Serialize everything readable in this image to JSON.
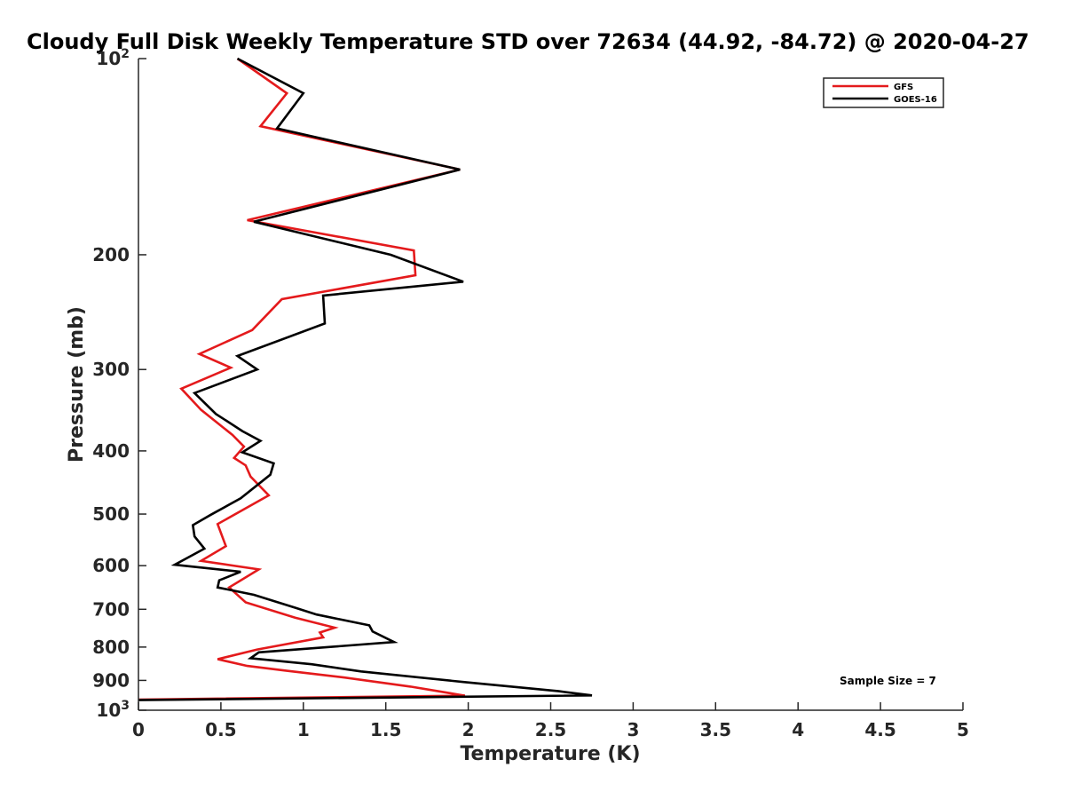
{
  "chart_data": {
    "type": "line",
    "title": "Cloudy Full Disk Weekly Temperature STD over 72634 (44.92, -84.72) @ 2020-04-27",
    "xlabel": "Temperature (K)",
    "ylabel": "Pressure (mb)",
    "xlim": [
      0,
      5
    ],
    "ylim": [
      100,
      1000
    ],
    "y_scale": "log",
    "y_reversed": true,
    "x_ticks": [
      "0",
      "0.5",
      "1",
      "1.5",
      "2",
      "2.5",
      "3",
      "3.5",
      "4",
      "4.5",
      "5"
    ],
    "x_tick_values": [
      0,
      0.5,
      1,
      1.5,
      2,
      2.5,
      3,
      3.5,
      4,
      4.5,
      5
    ],
    "y_ticks": [
      {
        "value": 100,
        "base": "10",
        "exp": "2"
      },
      {
        "value": 200,
        "label": "200"
      },
      {
        "value": 300,
        "label": "300"
      },
      {
        "value": 400,
        "label": "400"
      },
      {
        "value": 500,
        "label": "500"
      },
      {
        "value": 600,
        "label": "600"
      },
      {
        "value": 700,
        "label": "700"
      },
      {
        "value": 800,
        "label": "800"
      },
      {
        "value": 900,
        "label": "900"
      },
      {
        "value": 1000,
        "base": "10",
        "exp": "3"
      }
    ],
    "grid": false,
    "legend_position": "top-right",
    "series": [
      {
        "name": "GFS",
        "color": "#e41a1c",
        "points": [
          [
            0.6,
            100
          ],
          [
            0.9,
            113
          ],
          [
            0.74,
            127
          ],
          [
            1.95,
            148
          ],
          [
            0.66,
            177
          ],
          [
            1.67,
            197
          ],
          [
            1.68,
            215
          ],
          [
            0.87,
            234
          ],
          [
            0.69,
            261
          ],
          [
            0.37,
            284
          ],
          [
            0.56,
            298
          ],
          [
            0.26,
            321
          ],
          [
            0.38,
            346
          ],
          [
            0.57,
            378
          ],
          [
            0.64,
            394
          ],
          [
            0.58,
            410
          ],
          [
            0.65,
            421
          ],
          [
            0.68,
            438
          ],
          [
            0.79,
            468
          ],
          [
            0.48,
            518
          ],
          [
            0.53,
            560
          ],
          [
            0.38,
            590
          ],
          [
            0.73,
            608
          ],
          [
            0.55,
            648
          ],
          [
            0.65,
            683
          ],
          [
            0.95,
            721
          ],
          [
            1.19,
            747
          ],
          [
            1.1,
            760
          ],
          [
            1.12,
            773
          ],
          [
            0.72,
            807
          ],
          [
            0.48,
            835
          ],
          [
            0.66,
            855
          ],
          [
            0.9,
            870
          ],
          [
            1.25,
            891
          ],
          [
            1.65,
            920
          ],
          [
            1.98,
            950
          ],
          [
            0.0,
            963
          ]
        ]
      },
      {
        "name": "GOES-16",
        "color": "#000000",
        "points": [
          [
            0.6,
            100
          ],
          [
            1.0,
            113
          ],
          [
            0.84,
            128
          ],
          [
            1.95,
            148
          ],
          [
            0.7,
            178
          ],
          [
            1.53,
            200
          ],
          [
            1.97,
            220
          ],
          [
            1.12,
            231
          ],
          [
            1.13,
            255
          ],
          [
            0.6,
            286
          ],
          [
            0.72,
            300
          ],
          [
            0.34,
            326
          ],
          [
            0.47,
            351
          ],
          [
            0.63,
            373
          ],
          [
            0.74,
            386
          ],
          [
            0.63,
            402
          ],
          [
            0.82,
            418
          ],
          [
            0.8,
            435
          ],
          [
            0.62,
            473
          ],
          [
            0.44,
            501
          ],
          [
            0.33,
            520
          ],
          [
            0.34,
            541
          ],
          [
            0.4,
            565
          ],
          [
            0.22,
            598
          ],
          [
            0.62,
            613
          ],
          [
            0.49,
            632
          ],
          [
            0.48,
            648
          ],
          [
            0.7,
            665
          ],
          [
            0.95,
            696
          ],
          [
            1.08,
            713
          ],
          [
            1.4,
            741
          ],
          [
            1.42,
            757
          ],
          [
            1.55,
            786
          ],
          [
            0.73,
            815
          ],
          [
            0.68,
            832
          ],
          [
            1.05,
            850
          ],
          [
            1.35,
            872
          ],
          [
            1.97,
            905
          ],
          [
            2.55,
            935
          ],
          [
            2.75,
            949
          ],
          [
            0.0,
            965
          ]
        ]
      }
    ],
    "annotation": "Sample Size = 7"
  }
}
